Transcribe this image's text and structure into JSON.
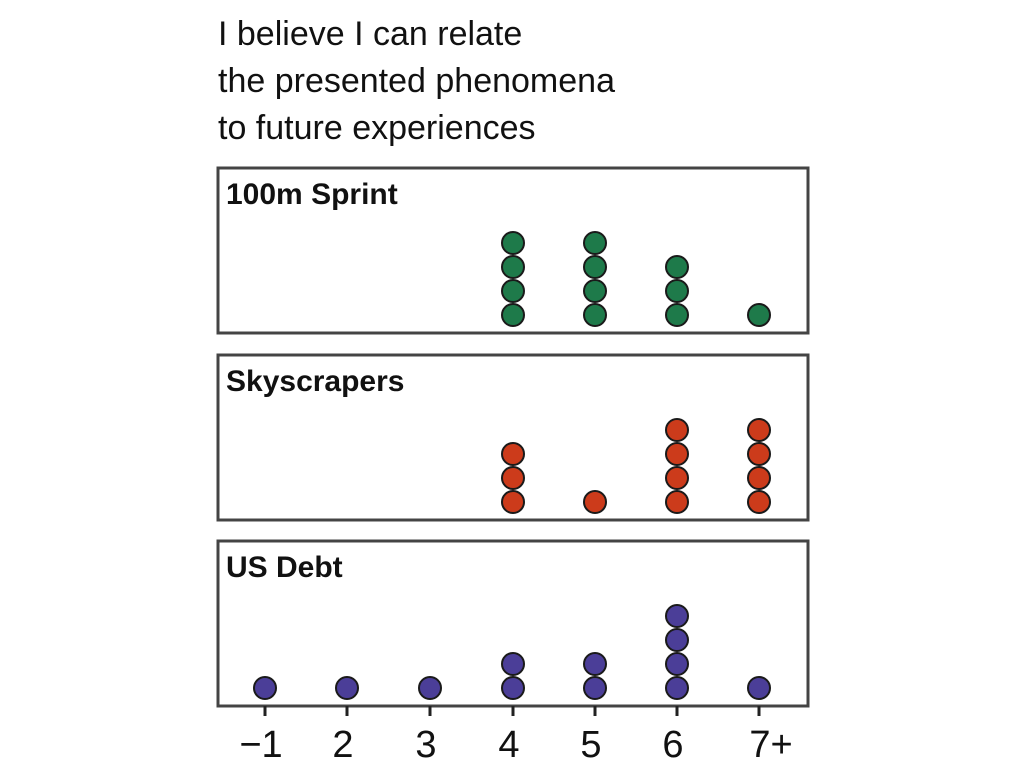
{
  "chart_data": {
    "type": "scatter",
    "subtype": "dot-plot",
    "title_lines": [
      "I believe I can relate",
      "the presented phenomena",
      "to future experiences"
    ],
    "x_ticks": [
      "−1",
      "2",
      "3",
      "4",
      "5",
      "6",
      "7+"
    ],
    "panels": [
      {
        "label": "100m Sprint",
        "color": "#1e7a4a",
        "counts": [
          0,
          0,
          0,
          4,
          4,
          3,
          1
        ]
      },
      {
        "label": "Skyscrapers",
        "color": "#cc3b1b",
        "counts": [
          0,
          0,
          0,
          3,
          1,
          4,
          4
        ]
      },
      {
        "label": "US Debt",
        "color": "#4b3e98",
        "counts": [
          1,
          1,
          1,
          2,
          2,
          4,
          1
        ]
      }
    ],
    "dot_stroke_color": "#1a1a1a",
    "panel_border_color": "#444444"
  }
}
